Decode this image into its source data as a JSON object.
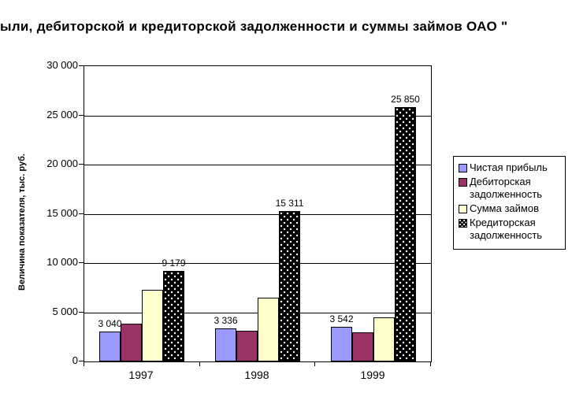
{
  "chart_data": {
    "type": "bar",
    "title": "ыли, дебиторской и кредиторской задолженности и суммы займов ОАО \"",
    "ylabel": "Величина показателя, тыс. руб.",
    "xlabel": "",
    "categories": [
      "1997",
      "1998",
      "1999"
    ],
    "series": [
      {
        "name": "Чистая прибыль",
        "color": "#9999FF",
        "pattern": "none",
        "values": [
          3040,
          3336,
          3542
        ],
        "data_labels": [
          "3 040",
          "3 336",
          "3 542"
        ],
        "show_labels": true
      },
      {
        "name": "Дебиторская задолженность",
        "color": "#993366",
        "pattern": "none",
        "values": [
          3800,
          3100,
          2970
        ],
        "data_labels": [],
        "show_labels": false
      },
      {
        "name": "Сумма займов",
        "color": "#FFFFCC",
        "pattern": "none",
        "values": [
          7250,
          6450,
          4440
        ],
        "data_labels": [],
        "show_labels": false
      },
      {
        "name": "Кредиторская задолженность",
        "color": "#000000",
        "pattern": "white-dots",
        "values": [
          9179,
          15311,
          25850
        ],
        "data_labels": [
          "9 179",
          "15 311",
          "25 850"
        ],
        "show_labels": true
      }
    ],
    "ylim": [
      0,
      30000
    ],
    "ytick_step": 5000,
    "ytick_labels": [
      "0",
      "5 000",
      "10 000",
      "15 000",
      "20 000",
      "25 000",
      "30 000"
    ],
    "grid": true,
    "legend_position": "right",
    "colors": {
      "axis": "#000000",
      "background": "#FFFFFF"
    }
  }
}
